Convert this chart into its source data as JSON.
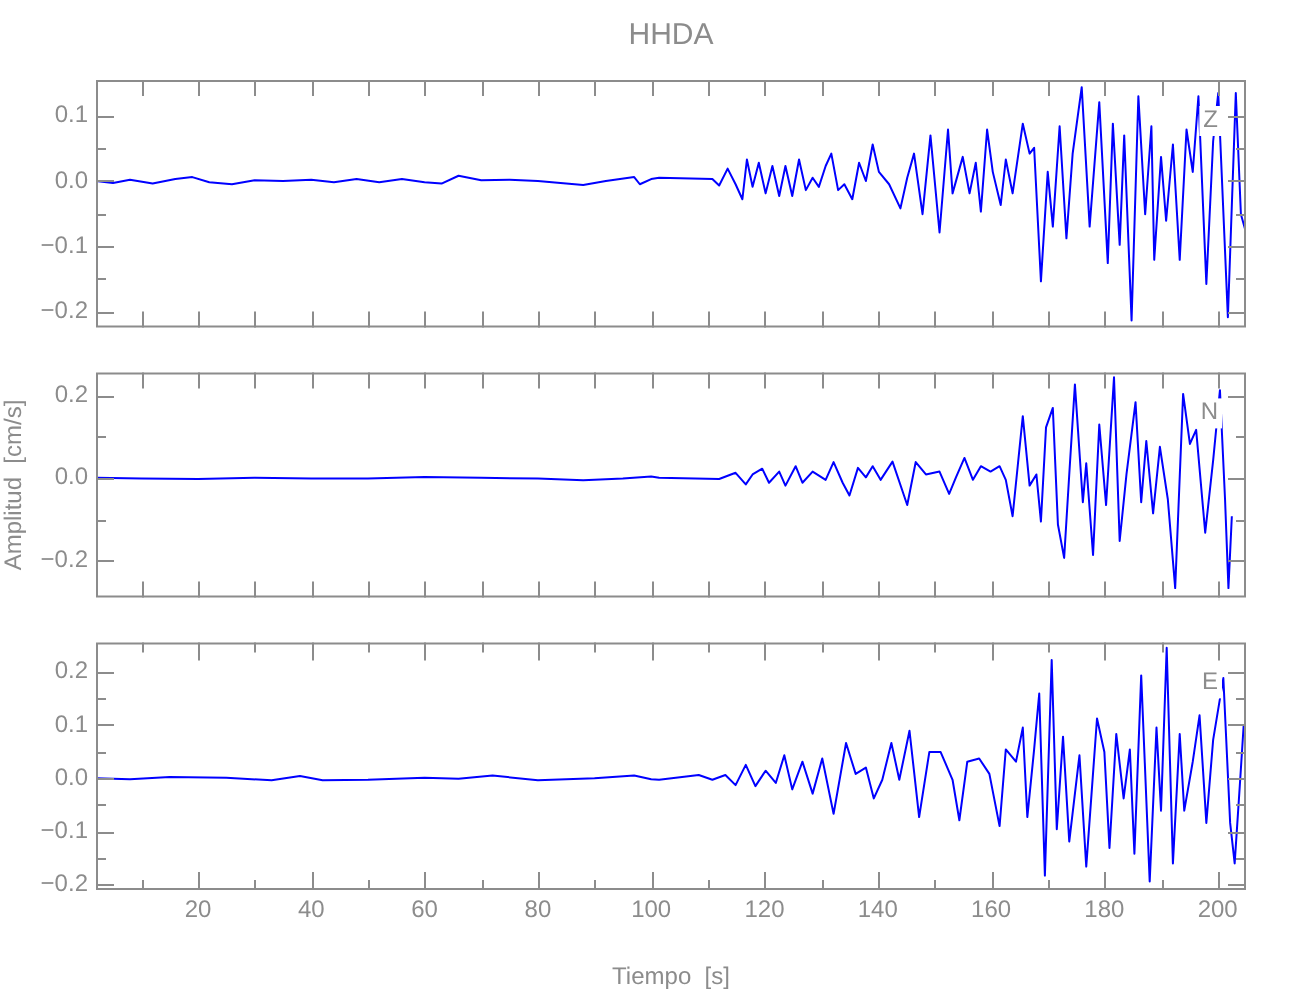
{
  "chart_data": [
    {
      "type": "line",
      "title": "HHDA",
      "annotations": [
        "Z"
      ],
      "grid": false,
      "tick_labels": "y",
      "marker": "none",
      "line_style": "solid",
      "xlim": [
        2,
        205
      ],
      "xticks": [
        {
          "value": 10,
          "label": null
        },
        {
          "value": 20,
          "label": null
        },
        {
          "value": 30,
          "label": null
        },
        {
          "value": 40,
          "label": null
        },
        {
          "value": 50,
          "label": null
        },
        {
          "value": 60,
          "label": null
        },
        {
          "value": 70,
          "label": null
        },
        {
          "value": 80,
          "label": null
        },
        {
          "value": 90,
          "label": null
        },
        {
          "value": 100,
          "label": null
        },
        {
          "value": 110,
          "label": null
        },
        {
          "value": 120,
          "label": null
        },
        {
          "value": 130,
          "label": null
        },
        {
          "value": 140,
          "label": null
        },
        {
          "value": 150,
          "label": null
        },
        {
          "value": 160,
          "label": null
        },
        {
          "value": 170,
          "label": null
        },
        {
          "value": 180,
          "label": null
        },
        {
          "value": 190,
          "label": null
        },
        {
          "value": 200,
          "label": null
        }
      ],
      "ylim": [
        -0.225,
        0.155
      ],
      "yticks": [
        -0.2,
        {
          "value": -0.15,
          "label": null
        },
        -0.1,
        {
          "value": -0.05,
          "label": null
        },
        {
          "value": 0,
          "label": "0.0"
        },
        {
          "value": 0.05,
          "label": null
        },
        0.1
      ],
      "series": [
        {
          "color": "#0000ff",
          "x": [
            2,
            5,
            8,
            12,
            16,
            19,
            22,
            26,
            30,
            35,
            40,
            44,
            48,
            52,
            56,
            60,
            63,
            66,
            70,
            75,
            80,
            85,
            88,
            92,
            97,
            98,
            100,
            101.4,
            110.8,
            112.0,
            113.5,
            114.9,
            116.1,
            116.9,
            117.9,
            119.0,
            120.2,
            121.4,
            122.6,
            123.7,
            124.9,
            126.1,
            127.3,
            128.5,
            129.6,
            130.8,
            131.8,
            133.0,
            134.1,
            135.5,
            136.7,
            137.9,
            139.1,
            140.2,
            142.0,
            144.0,
            145.2,
            146.4,
            147.9,
            149.3,
            150.9,
            152.4,
            153.2,
            155.0,
            156.2,
            157.3,
            158.2,
            159.3,
            160.3,
            161.7,
            162.6,
            163.8,
            165.6,
            166.8,
            167.6,
            168.8,
            170.0,
            170.9,
            172.1,
            173.3,
            174.4,
            176.0,
            177.4,
            179.1,
            180.6,
            181.5,
            182.7,
            183.5,
            184.8,
            186.0,
            187.2,
            188.3,
            188.8,
            190.0,
            190.9,
            192.1,
            193.3,
            194.5,
            195.6,
            196.6,
            198.0,
            199.2,
            200.1,
            201.8,
            203.2,
            204.1,
            205
          ],
          "values": [
            0,
            -0.003,
            0.002,
            -0.004,
            0.003,
            0.006,
            -0.002,
            -0.005,
            0.001,
            0,
            0.002,
            -0.002,
            0.003,
            -0.002,
            0.003,
            -0.002,
            -0.004,
            0.008,
            0.001,
            0.002,
            0,
            -0.004,
            -0.006,
            0,
            0.006,
            -0.005,
            0.003,
            0.005,
            0.003,
            -0.007,
            0.019,
            -0.005,
            -0.028,
            0.033,
            -0.009,
            0.028,
            -0.019,
            0.023,
            -0.023,
            0.023,
            -0.023,
            0.033,
            -0.014,
            0.005,
            -0.009,
            0.023,
            0.042,
            -0.014,
            -0.005,
            -0.028,
            0.028,
            0,
            0.056,
            0.014,
            -0.005,
            -0.042,
            0.005,
            0.042,
            -0.051,
            0.07,
            -0.079,
            0.079,
            -0.019,
            0.037,
            -0.019,
            0.028,
            -0.047,
            0.079,
            0.014,
            -0.037,
            0.033,
            -0.019,
            0.088,
            0.042,
            0.051,
            -0.154,
            0.014,
            -0.07,
            0.084,
            -0.088,
            0.042,
            0.144,
            -0.07,
            0.121,
            -0.126,
            0.088,
            -0.098,
            0.07,
            -0.214,
            0.13,
            -0.051,
            0.084,
            -0.121,
            0.037,
            -0.061,
            0.056,
            -0.121,
            0.079,
            0.014,
            0.13,
            -0.158,
            0.061,
            0.135,
            -0.209,
            0.135,
            -0.051,
            -0.079
          ]
        }
      ]
    },
    {
      "type": "line",
      "ylabel": "Amplitud  [cm/s]",
      "annotations": [
        "N"
      ],
      "grid": false,
      "tick_labels": "y",
      "marker": "none",
      "line_style": "solid",
      "xlim": [
        2,
        205
      ],
      "xticks": [
        {
          "value": 10,
          "label": null
        },
        {
          "value": 20,
          "label": null
        },
        {
          "value": 30,
          "label": null
        },
        {
          "value": 40,
          "label": null
        },
        {
          "value": 50,
          "label": null
        },
        {
          "value": 60,
          "label": null
        },
        {
          "value": 70,
          "label": null
        },
        {
          "value": 80,
          "label": null
        },
        {
          "value": 90,
          "label": null
        },
        {
          "value": 100,
          "label": null
        },
        {
          "value": 110,
          "label": null
        },
        {
          "value": 120,
          "label": null
        },
        {
          "value": 130,
          "label": null
        },
        {
          "value": 140,
          "label": null
        },
        {
          "value": 150,
          "label": null
        },
        {
          "value": 160,
          "label": null
        },
        {
          "value": 170,
          "label": null
        },
        {
          "value": 180,
          "label": null
        },
        {
          "value": 190,
          "label": null
        },
        {
          "value": 200,
          "label": null
        }
      ],
      "ylim": [
        -0.29,
        0.255
      ],
      "yticks": [
        -0.2,
        {
          "value": -0.1,
          "label": null
        },
        {
          "value": 0,
          "label": "0.0"
        },
        {
          "value": 0.1,
          "label": null
        },
        0.2
      ],
      "series": [
        {
          "color": "#0000ff",
          "x": [
            2,
            10,
            20,
            30,
            40,
            50,
            60,
            70,
            80,
            88,
            95,
            100,
            101.4,
            112.0,
            114.9,
            116.7,
            117.9,
            119.6,
            120.8,
            122.6,
            123.7,
            125.5,
            126.7,
            128.5,
            130.8,
            132.2,
            133.8,
            135.0,
            136.5,
            137.9,
            139.1,
            140.5,
            142.6,
            145.2,
            146.7,
            148.5,
            150.9,
            152.6,
            153.8,
            155.3,
            156.8,
            158.2,
            159.9,
            161.5,
            162.6,
            163.8,
            165.6,
            166.8,
            168.0,
            168.8,
            169.7,
            170.9,
            171.8,
            172.9,
            173.8,
            174.8,
            176.2,
            176.8,
            178.0,
            179.1,
            180.3,
            181.7,
            182.7,
            183.9,
            185.5,
            186.5,
            187.4,
            188.6,
            189.8,
            191.2,
            192.5,
            193.9,
            195.1,
            196.2,
            197.8,
            199.2,
            200.4,
            201.3,
            201.9,
            202.5
          ],
          "values": [
            0,
            -0.002,
            -0.003,
            0,
            -0.002,
            -0.002,
            0.002,
            0,
            -0.002,
            -0.006,
            -0.002,
            0.003,
            0,
            -0.003,
            0.012,
            -0.016,
            0.008,
            0.022,
            -0.012,
            0.015,
            -0.019,
            0.028,
            -0.012,
            0.015,
            -0.005,
            0.038,
            -0.012,
            -0.043,
            0.024,
            0.001,
            0.028,
            -0.005,
            0.039,
            -0.066,
            0.038,
            0.008,
            0.015,
            -0.039,
            0.001,
            0.048,
            -0.005,
            0.028,
            0.015,
            0.028,
            -0.005,
            -0.093,
            0.149,
            -0.019,
            0.008,
            -0.106,
            0.122,
            0.169,
            -0.113,
            -0.194,
            0.008,
            0.226,
            -0.059,
            0.035,
            -0.187,
            0.129,
            -0.066,
            0.243,
            -0.153,
            0.008,
            0.183,
            -0.059,
            0.089,
            -0.086,
            0.075,
            -0.052,
            -0.267,
            0.203,
            0.082,
            0.116,
            -0.133,
            0.042,
            0.212,
            -0.052,
            -0.267,
            -0.093
          ]
        }
      ]
    },
    {
      "type": "line",
      "xlabel": "Tiempo  [s]",
      "annotations": [
        "E"
      ],
      "grid": false,
      "marker": "none",
      "line_style": "solid",
      "xlim": [
        2,
        205
      ],
      "xticks": [
        {
          "value": 10,
          "label": null
        },
        20,
        {
          "value": 30,
          "label": null
        },
        40,
        {
          "value": 50,
          "label": null
        },
        60,
        {
          "value": 70,
          "label": null
        },
        80,
        {
          "value": 90,
          "label": null
        },
        100,
        {
          "value": 110,
          "label": null
        },
        120,
        {
          "value": 130,
          "label": null
        },
        140,
        {
          "value": 150,
          "label": null
        },
        160,
        {
          "value": 170,
          "label": null
        },
        180,
        {
          "value": 190,
          "label": null
        },
        200
      ],
      "ylim": [
        -0.21,
        0.255
      ],
      "yticks": [
        -0.2,
        {
          "value": -0.15,
          "label": null
        },
        -0.1,
        {
          "value": -0.05,
          "label": null
        },
        {
          "value": 0,
          "label": "0.0"
        },
        {
          "value": 0.05,
          "label": null
        },
        0.1,
        {
          "value": 0.15,
          "label": null
        },
        0.2
      ],
      "series": [
        {
          "color": "#0000ff",
          "x": [
            2,
            8,
            15,
            25,
            33,
            38,
            42,
            50,
            60,
            66,
            72,
            80,
            90,
            97,
            100,
            101.4,
            108.4,
            110.8,
            113.1,
            114.9,
            116.7,
            118.4,
            120.2,
            122.0,
            123.5,
            124.9,
            126.7,
            128.5,
            130.2,
            132.2,
            134.4,
            136.1,
            137.9,
            139.3,
            140.8,
            142.4,
            143.8,
            145.6,
            147.3,
            149.1,
            151.1,
            153.2,
            154.4,
            155.8,
            157.9,
            159.7,
            161.5,
            162.6,
            164.4,
            165.6,
            166.4,
            167.6,
            168.5,
            169.5,
            170.7,
            171.6,
            172.7,
            173.8,
            175.6,
            176.8,
            178.7,
            180.0,
            180.9,
            182.1,
            183.4,
            184.5,
            185.3,
            186.5,
            188.0,
            189.2,
            190.0,
            191.0,
            192.1,
            193.3,
            194.1,
            195.6,
            196.8,
            198.0,
            199.2,
            201.0,
            202.2,
            203.0,
            203.9,
            204.6
          ],
          "values": [
            0,
            -0.002,
            0.002,
            0.001,
            -0.004,
            0.004,
            -0.004,
            -0.003,
            0.001,
            -0.001,
            0.005,
            -0.004,
            0,
            0.005,
            -0.002,
            -0.003,
            0.006,
            -0.003,
            0.006,
            -0.013,
            0.025,
            -0.015,
            0.014,
            -0.009,
            0.043,
            -0.021,
            0.031,
            -0.029,
            0.037,
            -0.067,
            0.066,
            0.008,
            0.02,
            -0.038,
            -0.003,
            0.066,
            -0.003,
            0.089,
            -0.073,
            0.049,
            0.049,
            -0.003,
            -0.079,
            0.031,
            0.037,
            0.008,
            -0.09,
            0.054,
            0.031,
            0.095,
            -0.073,
            0.054,
            0.159,
            -0.183,
            0.222,
            -0.096,
            0.078,
            -0.119,
            0.043,
            -0.166,
            0.112,
            0.049,
            -0.131,
            0.083,
            -0.038,
            0.054,
            -0.142,
            0.193,
            -0.194,
            0.095,
            -0.061,
            0.245,
            -0.16,
            0.083,
            -0.061,
            0.031,
            0.118,
            -0.084,
            0.072,
            0.188,
            -0.084,
            -0.16,
            -0.015,
            0.101
          ]
        }
      ]
    }
  ]
}
